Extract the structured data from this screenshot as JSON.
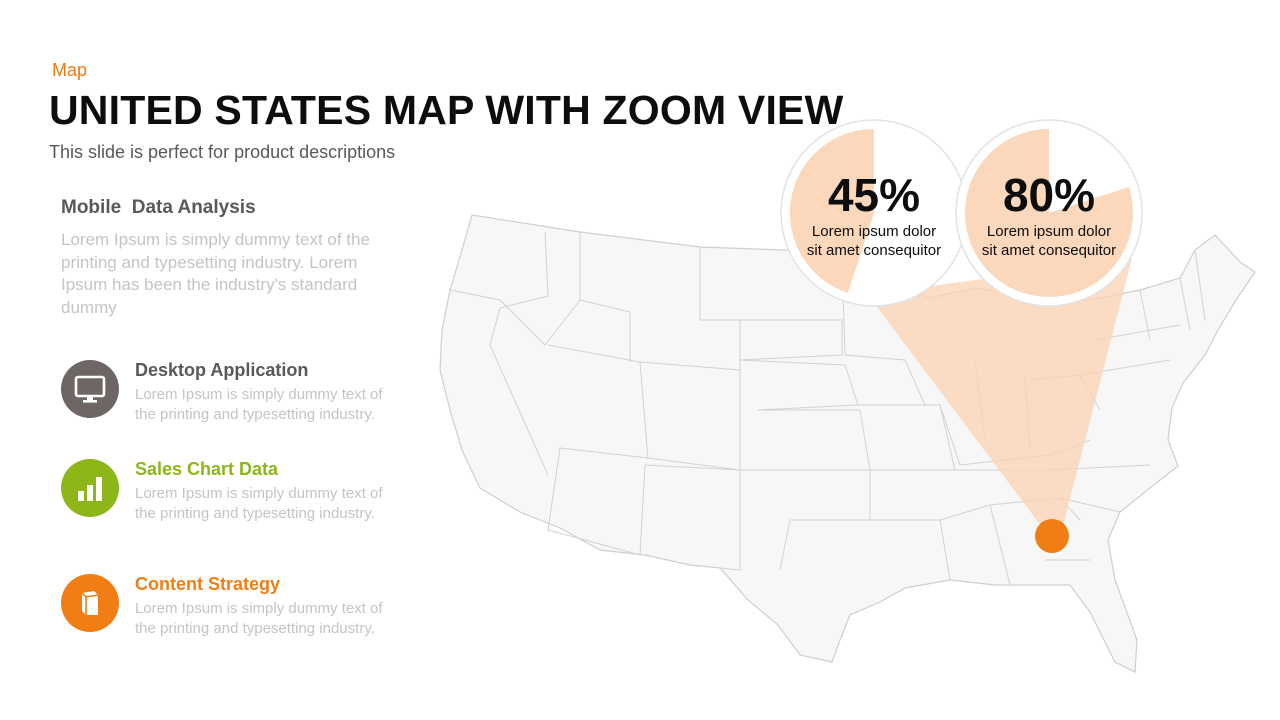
{
  "header": {
    "eyebrow": "Map",
    "title": "UNITED STATES MAP WITH ZOOM VIEW",
    "subtitle": "This slide is perfect for product descriptions"
  },
  "intro": {
    "heading": "Mobile  Data Analysis",
    "body": "Lorem Ipsum is simply dummy text of the printing and typesetting industry. Lorem Ipsum has been the industry's standard dummy"
  },
  "features": [
    {
      "title": "Desktop Application",
      "body": "Lorem Ipsum  is simply dummy  text of the printing and typesetting industry.",
      "icon": "monitor-icon",
      "color": "#6d6665"
    },
    {
      "title": "Sales Chart Data",
      "body": "Lorem Ipsum  is simply dummy text of the printing and typesetting industry.",
      "icon": "bar-chart-icon",
      "color": "#8db619"
    },
    {
      "title": "Content Strategy",
      "body": "Lorem Ipsum  is simply dummy text of the printing and typesetting industry.",
      "icon": "book-icon",
      "color": "#f07e14"
    }
  ],
  "stats": [
    {
      "value": "45%",
      "label_line1": "Lorem ipsum dolor",
      "label_line2": "sit amet consequitor",
      "fraction": 0.45
    },
    {
      "value": "80%",
      "label_line1": "Lorem ipsum dolor",
      "label_line2": "sit amet consequitor",
      "fraction": 0.8
    }
  ],
  "colors": {
    "accent": "#f07e14",
    "highlight": "#fbd3b4",
    "map_fill": "#f7f7f7",
    "map_stroke": "#cfcfcf"
  }
}
